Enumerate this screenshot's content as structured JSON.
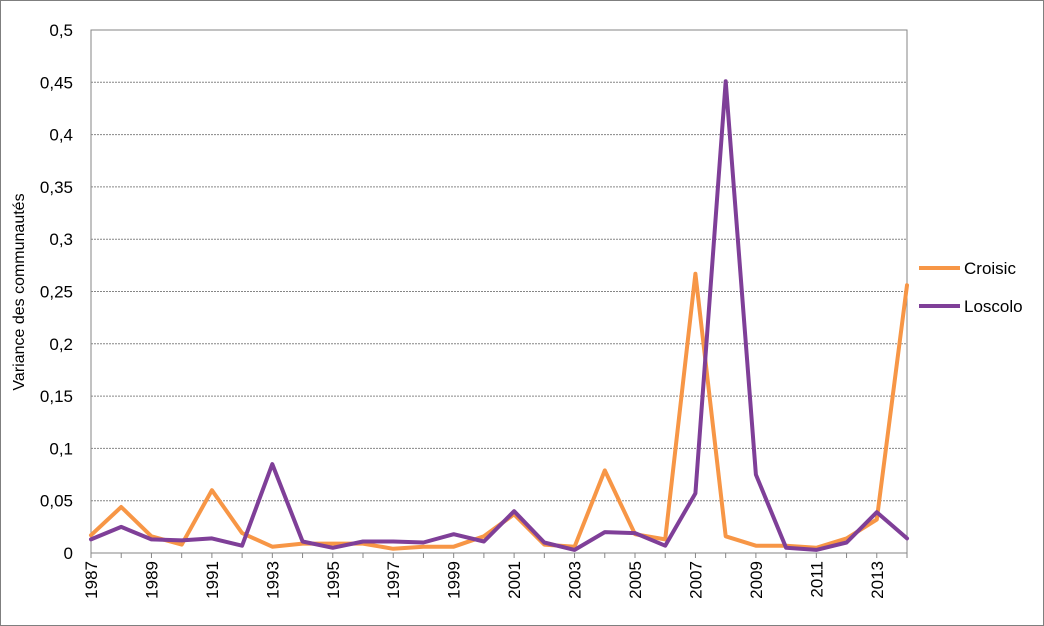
{
  "chart_data": {
    "type": "line",
    "title": "",
    "xlabel": "",
    "ylabel": "Variance des communautés",
    "x": [
      1987,
      1988,
      1989,
      1990,
      1991,
      1992,
      1993,
      1994,
      1995,
      1996,
      1997,
      1998,
      1999,
      2000,
      2001,
      2002,
      2003,
      2004,
      2005,
      2006,
      2007,
      2008,
      2009,
      2010,
      2011,
      2012,
      2013,
      2014
    ],
    "x_tick_labels": [
      "1987",
      "1989",
      "1991",
      "1993",
      "1995",
      "1997",
      "1999",
      "2001",
      "2003",
      "2005",
      "2007",
      "2009",
      "2011",
      "2013"
    ],
    "ylim": [
      0,
      0.5
    ],
    "y_tick_labels": [
      "0",
      "0,05",
      "0,1",
      "0,15",
      "0,2",
      "0,25",
      "0,3",
      "0,35",
      "0,4",
      "0,45",
      "0,5"
    ],
    "y_ticks": [
      0,
      0.05,
      0.1,
      0.15,
      0.2,
      0.25,
      0.3,
      0.35,
      0.4,
      0.45,
      0.5
    ],
    "grid": "horizontal",
    "legend_position": "right",
    "series": [
      {
        "name": "Croisic",
        "color": "#f79646",
        "values": [
          0.017,
          0.044,
          0.016,
          0.008,
          0.06,
          0.019,
          0.006,
          0.009,
          0.009,
          0.009,
          0.004,
          0.006,
          0.006,
          0.016,
          0.037,
          0.008,
          0.006,
          0.079,
          0.018,
          0.013,
          0.267,
          0.016,
          0.007,
          0.007,
          0.005,
          0.014,
          0.032,
          0.256
        ]
      },
      {
        "name": "Loscolo",
        "color": "#7f3f98",
        "values": [
          0.013,
          0.025,
          0.013,
          0.012,
          0.014,
          0.007,
          0.085,
          0.011,
          0.005,
          0.011,
          0.011,
          0.01,
          0.018,
          0.011,
          0.04,
          0.01,
          0.003,
          0.02,
          0.019,
          0.007,
          0.057,
          0.451,
          0.075,
          0.005,
          0.003,
          0.01,
          0.039,
          0.014
        ]
      }
    ]
  }
}
